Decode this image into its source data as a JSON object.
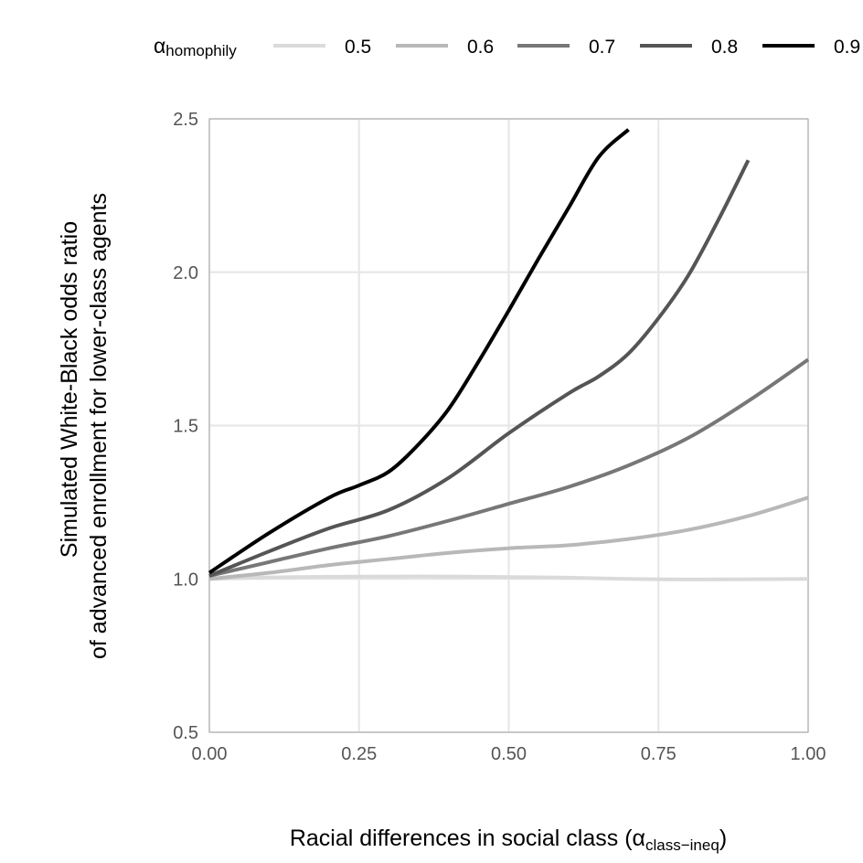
{
  "chart_data": {
    "type": "line",
    "title": "",
    "xlabel": {
      "main": "Racial differences in social class (",
      "symbol": "α",
      "subscript": "class−ineq",
      "close": ")"
    },
    "ylabel": [
      "Simulated White-Black odds ratio",
      "of advanced enrollment for lower-class agents"
    ],
    "xlim": [
      0,
      1
    ],
    "ylim": [
      0.5,
      2.5
    ],
    "x_ticks": [
      0,
      0.25,
      0.5,
      0.75,
      1
    ],
    "x_tick_labels": [
      "0.00",
      "0.25",
      "0.50",
      "0.75",
      "1.00"
    ],
    "y_ticks": [
      0.5,
      1.0,
      1.5,
      2.0,
      2.5
    ],
    "y_tick_labels": [
      "0.5",
      "1.0",
      "1.5",
      "2.0",
      "2.5"
    ],
    "grid": true,
    "legend": {
      "position": "top",
      "title_symbol": "α",
      "title_subscript": "homophily"
    },
    "series": [
      {
        "name": "0.5",
        "color": "#dadada",
        "x": [
          0,
          0.1,
          0.2,
          0.3,
          0.4,
          0.5,
          0.6,
          0.7,
          0.8,
          0.9,
          1.0
        ],
        "y": [
          1.0,
          1.005,
          1.007,
          1.008,
          1.008,
          1.006,
          1.004,
          1.0,
          0.998,
          0.999,
          1.0
        ]
      },
      {
        "name": "0.6",
        "color": "#b8b8b8",
        "x": [
          0,
          0.1,
          0.2,
          0.3,
          0.4,
          0.5,
          0.6,
          0.7,
          0.8,
          0.9,
          1.0
        ],
        "y": [
          1.0,
          1.02,
          1.045,
          1.065,
          1.085,
          1.1,
          1.11,
          1.13,
          1.16,
          1.205,
          1.265
        ]
      },
      {
        "name": "0.7",
        "color": "#777777",
        "x": [
          0,
          0.1,
          0.2,
          0.3,
          0.4,
          0.5,
          0.6,
          0.7,
          0.8,
          0.9,
          1.0
        ],
        "y": [
          1.01,
          1.055,
          1.1,
          1.14,
          1.19,
          1.245,
          1.3,
          1.37,
          1.46,
          1.58,
          1.715
        ]
      },
      {
        "name": "0.8",
        "color": "#555555",
        "x": [
          0,
          0.1,
          0.2,
          0.3,
          0.4,
          0.5,
          0.6,
          0.65,
          0.7,
          0.75,
          0.8,
          0.85,
          0.9
        ],
        "y": [
          1.01,
          1.09,
          1.165,
          1.225,
          1.33,
          1.475,
          1.605,
          1.66,
          1.735,
          1.85,
          1.99,
          2.17,
          2.365
        ]
      },
      {
        "name": "0.9",
        "color": "#000000",
        "x": [
          0,
          0.1,
          0.2,
          0.25,
          0.3,
          0.35,
          0.4,
          0.45,
          0.5,
          0.55,
          0.6,
          0.65,
          0.7
        ],
        "y": [
          1.02,
          1.15,
          1.265,
          1.305,
          1.35,
          1.44,
          1.555,
          1.71,
          1.875,
          2.045,
          2.21,
          2.375,
          2.465
        ]
      }
    ]
  }
}
